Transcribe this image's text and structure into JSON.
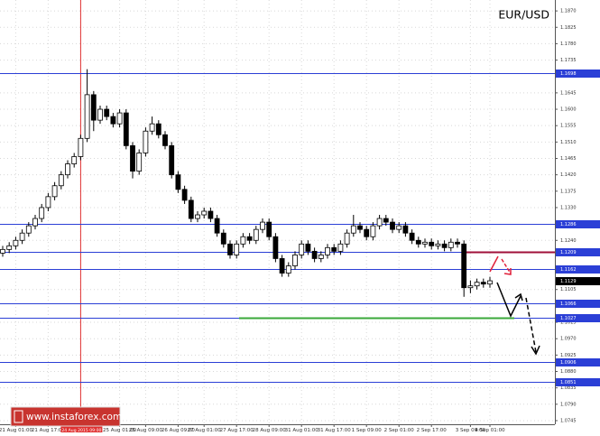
{
  "chart_data": {
    "type": "candlestick",
    "title": "EUR/USD",
    "watermark": "www.instaforex.com",
    "open": [
      1.1205,
      1.1215,
      1.1225,
      1.124,
      1.126,
      1.128,
      1.13,
      1.133,
      1.136,
      1.139,
      1.142,
      1.145,
      1.147,
      1.152,
      1.164,
      1.157,
      1.16,
      1.158,
      1.156,
      1.159,
      1.15,
      1.143,
      1.148,
      1.154,
      1.156,
      1.153,
      1.15,
      1.142,
      1.138,
      1.135,
      1.13,
      1.131,
      1.132,
      1.13,
      1.126,
      1.123,
      1.12,
      1.123,
      1.125,
      1.124,
      1.127,
      1.129,
      1.125,
      1.119,
      1.115,
      1.117,
      1.12,
      1.123,
      1.121,
      1.119,
      1.12,
      1.122,
      1.121,
      1.123,
      1.126,
      1.128,
      1.127,
      1.125,
      1.128,
      1.13,
      1.129,
      1.127,
      1.128,
      1.126,
      1.124,
      1.123,
      1.1235,
      1.1225,
      1.123,
      1.122,
      1.1235,
      1.123,
      1.111,
      1.1115,
      1.1125,
      1.112
    ],
    "high": [
      1.1225,
      1.1235,
      1.125,
      1.127,
      1.129,
      1.131,
      1.134,
      1.137,
      1.14,
      1.143,
      1.146,
      1.148,
      1.153,
      1.171,
      1.165,
      1.161,
      1.161,
      1.159,
      1.16,
      1.16,
      1.151,
      1.149,
      1.155,
      1.158,
      1.157,
      1.154,
      1.151,
      1.143,
      1.139,
      1.136,
      1.132,
      1.133,
      1.133,
      1.131,
      1.127,
      1.124,
      1.124,
      1.126,
      1.126,
      1.128,
      1.13,
      1.13,
      1.126,
      1.12,
      1.118,
      1.121,
      1.124,
      1.124,
      1.122,
      1.121,
      1.123,
      1.123,
      1.124,
      1.127,
      1.131,
      1.129,
      1.128,
      1.129,
      1.131,
      1.131,
      1.13,
      1.129,
      1.129,
      1.127,
      1.125,
      1.1245,
      1.1245,
      1.124,
      1.124,
      1.1245,
      1.1245,
      1.124,
      1.113,
      1.1135,
      1.1135,
      1.114
    ],
    "low": [
      1.1195,
      1.1205,
      1.1215,
      1.123,
      1.125,
      1.127,
      1.129,
      1.132,
      1.135,
      1.138,
      1.141,
      1.144,
      1.146,
      1.151,
      1.154,
      1.156,
      1.157,
      1.155,
      1.155,
      1.149,
      1.141,
      1.142,
      1.147,
      1.153,
      1.152,
      1.149,
      1.141,
      1.137,
      1.134,
      1.129,
      1.129,
      1.13,
      1.129,
      1.125,
      1.122,
      1.119,
      1.119,
      1.122,
      1.123,
      1.123,
      1.126,
      1.124,
      1.118,
      1.114,
      1.114,
      1.116,
      1.119,
      1.12,
      1.118,
      1.118,
      1.119,
      1.12,
      1.12,
      1.122,
      1.125,
      1.126,
      1.124,
      1.124,
      1.127,
      1.128,
      1.126,
      1.126,
      1.125,
      1.123,
      1.122,
      1.122,
      1.1215,
      1.1215,
      1.121,
      1.121,
      1.122,
      1.1085,
      1.1095,
      1.1105,
      1.111,
      1.111
    ],
    "close": [
      1.1215,
      1.1225,
      1.124,
      1.126,
      1.128,
      1.13,
      1.133,
      1.136,
      1.139,
      1.142,
      1.145,
      1.147,
      1.152,
      1.164,
      1.157,
      1.16,
      1.158,
      1.156,
      1.159,
      1.15,
      1.143,
      1.148,
      1.154,
      1.156,
      1.153,
      1.15,
      1.142,
      1.138,
      1.135,
      1.13,
      1.131,
      1.132,
      1.13,
      1.126,
      1.123,
      1.12,
      1.123,
      1.125,
      1.124,
      1.127,
      1.129,
      1.125,
      1.119,
      1.115,
      1.117,
      1.12,
      1.123,
      1.121,
      1.119,
      1.12,
      1.122,
      1.121,
      1.123,
      1.126,
      1.128,
      1.127,
      1.125,
      1.128,
      1.13,
      1.129,
      1.127,
      1.128,
      1.126,
      1.124,
      1.123,
      1.1235,
      1.1225,
      1.123,
      1.122,
      1.1235,
      1.123,
      1.111,
      1.1115,
      1.1125,
      1.112,
      1.1129
    ],
    "ylim": [
      1.0735,
      1.19
    ],
    "yticks": [
      {
        "value": 1.187,
        "label": "1.1870"
      },
      {
        "value": 1.1825,
        "label": "1.1825"
      },
      {
        "value": 1.178,
        "label": "1.1780"
      },
      {
        "value": 1.1735,
        "label": "1.1735"
      },
      {
        "value": 1.1645,
        "label": "1.1645"
      },
      {
        "value": 1.16,
        "label": "1.1600"
      },
      {
        "value": 1.1555,
        "label": "1.1555"
      },
      {
        "value": 1.151,
        "label": "1.1510"
      },
      {
        "value": 1.1465,
        "label": "1.1465"
      },
      {
        "value": 1.142,
        "label": "1.1420"
      },
      {
        "value": 1.1375,
        "label": "1.1375"
      },
      {
        "value": 1.133,
        "label": "1.1330"
      },
      {
        "value": 1.124,
        "label": "1.1240"
      },
      {
        "value": 1.1105,
        "label": "1.1105"
      },
      {
        "value": 1.1015,
        "label": "1.1015"
      },
      {
        "value": 1.097,
        "label": "1.0970"
      },
      {
        "value": 1.0925,
        "label": "1.0925"
      },
      {
        "value": 1.088,
        "label": "1.0880"
      },
      {
        "value": 1.0835,
        "label": "1.0835"
      },
      {
        "value": 1.079,
        "label": "1.0790"
      },
      {
        "value": 1.0745,
        "label": "1.0745"
      }
    ],
    "xticks": [
      {
        "value": 2,
        "label": "21 Aug 01:00"
      },
      {
        "value": 7,
        "label": "21 Aug 17:00"
      },
      {
        "value": 12,
        "label": "24 Aug 2015 09:00"
      },
      {
        "value": 18,
        "label": "25 Aug 01:00"
      },
      {
        "value": 22,
        "label": "25 Aug 09:00"
      },
      {
        "value": 27,
        "label": "26 Aug 09:00"
      },
      {
        "value": 31,
        "label": "27 Aug 01:00"
      },
      {
        "value": 36,
        "label": "27 Aug 17:00"
      },
      {
        "value": 41,
        "label": "28 Aug 09:00"
      },
      {
        "value": 46,
        "label": "31 Aug 01:00"
      },
      {
        "value": 51,
        "label": "31 Aug 17:00"
      },
      {
        "value": 56,
        "label": "1 Sep 09:00"
      },
      {
        "value": 61,
        "label": "2 Sep 01:00"
      },
      {
        "value": 66,
        "label": "2 Sep 17:00"
      },
      {
        "value": 72,
        "label": "3 Sep 09:00"
      },
      {
        "value": 75,
        "label": "4 Sep 01:00"
      }
    ],
    "cursor_tick": 2,
    "levels": [
      {
        "value": 1.1698,
        "color": "#2b3fd6"
      },
      {
        "value": 1.1286,
        "color": "#2b3fd6"
      },
      {
        "value": 1.1209,
        "color": "#2b3fd6",
        "highlight": "#a0103a"
      },
      {
        "value": 1.1162,
        "color": "#2b3fd6"
      },
      {
        "value": 1.1129,
        "color": "#000000"
      },
      {
        "value": 1.1066,
        "color": "#2b3fd6"
      },
      {
        "value": 1.1027,
        "color": "#2b3fd6",
        "highlight": "#3aa83a"
      },
      {
        "value": 1.0906,
        "color": "#2b3fd6"
      },
      {
        "value": 1.0851,
        "color": "#2b3fd6"
      }
    ],
    "grid": true
  }
}
